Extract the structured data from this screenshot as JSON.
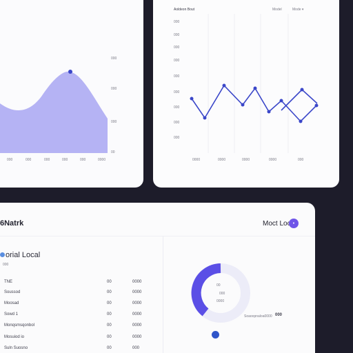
{
  "area_card": {
    "y_ticks": [
      "000",
      "000",
      "000",
      "00"
    ],
    "x_ticks": [
      "000",
      "000",
      "000",
      "000",
      "000",
      "0000"
    ]
  },
  "line_card": {
    "title": "Aoldeon Bout",
    "filter1": "Model",
    "filter2": "Mode ▾",
    "y_ticks": [
      "000",
      "000",
      "000",
      "000",
      "000",
      "000",
      "000",
      "000",
      "000"
    ],
    "x_ticks": [
      "0000",
      "0000",
      "0000",
      "0000",
      "000"
    ]
  },
  "table_card": {
    "title": "6Natrk",
    "right_title": "Moct Loc",
    "section_title": "orial Local",
    "section_sub": "000",
    "rows": [
      {
        "label": "TNE",
        "mid": "00",
        "val": "0000"
      },
      {
        "label": "Soussod",
        "mid": "00",
        "val": "0000"
      },
      {
        "label": "Moosad",
        "mid": "00",
        "val": "0000"
      },
      {
        "label": "Sowd 1",
        "mid": "00",
        "val": "0000"
      },
      {
        "label": "Monqsmsqonbol",
        "mid": "00",
        "val": "0000"
      },
      {
        "label": "Mosuiod io",
        "mid": "00",
        "val": "0000"
      },
      {
        "label": "Suln Suosno",
        "mid": "00",
        "val": "000"
      }
    ],
    "donut_labels": [
      "00",
      "000",
      "0000"
    ],
    "donut_legend": "Soaoopnaloa0000",
    "donut_legend_val": "000"
  },
  "colors": {
    "accent": "#6f55e8",
    "area_fill": "#b5b3f4",
    "line": "#3b47c9",
    "donut": "#5b4fe6"
  }
}
